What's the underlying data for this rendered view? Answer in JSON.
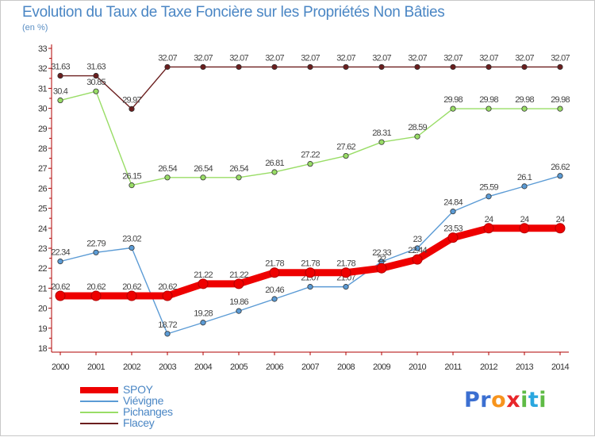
{
  "title": "Evolution du Taux de Taxe Foncière sur les Propriétés Non Bâties",
  "unit": "(en %)",
  "brand": {
    "letters": [
      {
        "char": "P",
        "color": "#3b6fd1"
      },
      {
        "char": "r",
        "color": "#3b6fd1"
      },
      {
        "char": "o",
        "color": "#f7941d"
      },
      {
        "char": "x",
        "color": "#e8262a"
      },
      {
        "char": "i",
        "color": "#5fbb46"
      },
      {
        "char": "t",
        "color": "#2aa7df"
      },
      {
        "char": "i",
        "color": "#5fbb46"
      }
    ]
  },
  "chart_data": {
    "type": "line",
    "title": "Evolution du Taux de Taxe Foncière sur les Propriétés Non Bâties",
    "ylabel": "(en %)",
    "xlabel": "",
    "ylim": [
      18,
      33
    ],
    "yticks": [
      18,
      19,
      20,
      21,
      22,
      23,
      24,
      25,
      26,
      27,
      28,
      29,
      30,
      31,
      32,
      33
    ],
    "x": [
      "2000",
      "2001",
      "2002",
      "2003",
      "2004",
      "2005",
      "2006",
      "2007",
      "2008",
      "2009",
      "2010",
      "2011",
      "2012",
      "2013",
      "2014"
    ],
    "grid": false,
    "legend_position": "bottom-left",
    "series": [
      {
        "name": "Flacey",
        "color": "#6b1e1e",
        "width": "thin",
        "values": [
          31.63,
          31.63,
          29.97,
          32.07,
          32.07,
          32.07,
          32.07,
          32.07,
          32.07,
          32.07,
          32.07,
          32.07,
          32.07,
          32.07,
          32.07
        ],
        "labels": [
          "31.63",
          "31.63",
          "29.97",
          "32.07",
          "32.07",
          "32.07",
          "32.07",
          "32.07",
          "32.07",
          "32.07",
          "32.07",
          "32.07",
          "32.07",
          "32.07",
          "32.07"
        ]
      },
      {
        "name": "Pichanges",
        "color": "#99dd66",
        "width": "thin",
        "values": [
          30.4,
          30.85,
          26.15,
          26.54,
          26.54,
          26.54,
          26.81,
          27.22,
          27.62,
          28.31,
          28.59,
          29.98,
          29.98,
          29.98,
          29.98
        ],
        "labels": [
          "30.4",
          "30.85",
          "26.15",
          "26.54",
          "26.54",
          "26.54",
          "26.81",
          "27.22",
          "27.62",
          "28.31",
          "28.59",
          "29.98",
          "29.98",
          "29.98",
          "29.98"
        ]
      },
      {
        "name": "Viévigne",
        "color": "#5b9bd5",
        "width": "thin",
        "values": [
          22.34,
          22.79,
          23.02,
          18.72,
          19.28,
          19.86,
          20.46,
          21.07,
          21.07,
          22.33,
          23,
          24.84,
          25.59,
          26.1,
          26.62
        ],
        "labels": [
          "22.34",
          "22.79",
          "23.02",
          "18.72",
          "19.28",
          "19.86",
          "20.46",
          "21.07",
          "21.07",
          "22.33",
          "23",
          "24.84",
          "25.59",
          "26.1",
          "26.62"
        ]
      },
      {
        "name": "SPOY",
        "color": "#ee0000",
        "width": "thick",
        "values": [
          20.62,
          20.62,
          20.62,
          20.62,
          21.22,
          21.22,
          21.78,
          21.78,
          21.78,
          22,
          22.44,
          23.53,
          24,
          24,
          24
        ],
        "labels": [
          "20.62",
          "20.62",
          "20.62",
          "20.62",
          "21.22",
          "21.22",
          "21.78",
          "21.78",
          "21.78",
          "22",
          "22.44",
          "23.53",
          "24",
          "24",
          "24"
        ]
      }
    ]
  },
  "legend": [
    {
      "label": "SPOY",
      "color": "#ee0000",
      "width": "thick"
    },
    {
      "label": "Viévigne",
      "color": "#5b9bd5",
      "width": "thin"
    },
    {
      "label": "Pichanges",
      "color": "#99dd66",
      "width": "thin"
    },
    {
      "label": "Flacey",
      "color": "#6b1e1e",
      "width": "thin"
    }
  ]
}
